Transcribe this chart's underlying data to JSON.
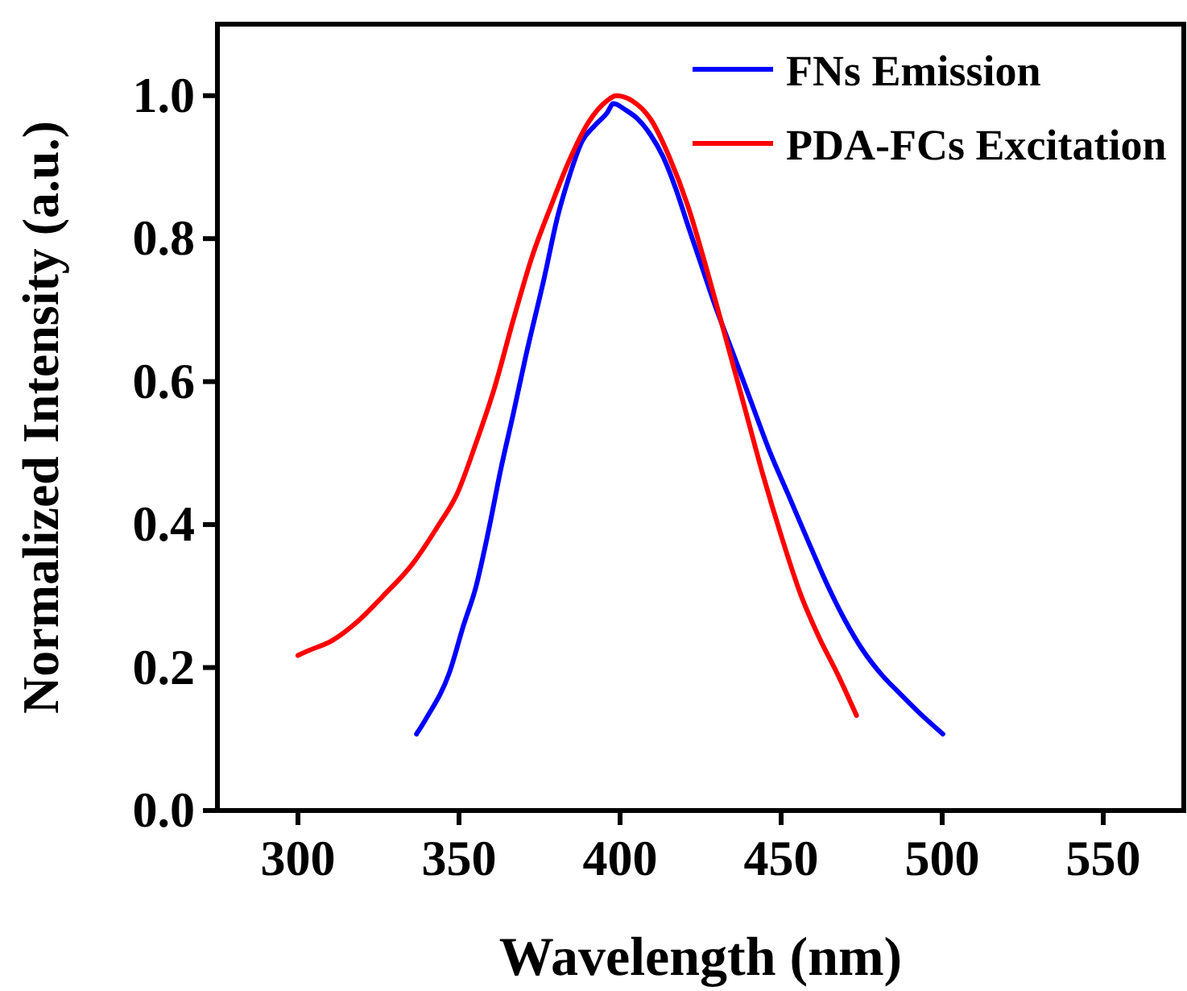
{
  "chart_data": {
    "type": "line",
    "xlabel": "Wavelength (nm)",
    "ylabel": "Normalized Intensity (a.u.)",
    "xlim": [
      275,
      575
    ],
    "xticks": [
      300,
      350,
      400,
      450,
      500,
      550
    ],
    "ylim": [
      0,
      1.1
    ],
    "yticks": [
      {
        "value": 0,
        "label": "0.0"
      },
      0.2,
      0.4,
      0.6,
      0.8,
      {
        "value": 1,
        "label": "1.0"
      }
    ],
    "grid": false,
    "legend": "top right",
    "marker": "none",
    "line_style": "solid",
    "series": [
      {
        "name": "FNs Emission",
        "color": "#0000ff",
        "x": [
          336.8,
          339.7,
          347.1,
          351.4,
          355.2,
          359.1,
          363,
          366.9,
          370.7,
          376.6,
          380.4,
          384.3,
          388.2,
          392.1,
          396,
          397.9,
          401.7,
          405.6,
          409.5,
          413.4,
          417.2,
          421.1,
          425,
          428.9,
          434.7,
          440.5,
          446.3,
          452.1,
          457.9,
          463.8,
          469.6,
          475.4,
          481.2,
          487,
          492.8,
          500.2
        ],
        "values": [
          0.107,
          0.128,
          0.194,
          0.259,
          0.312,
          0.39,
          0.478,
          0.556,
          0.635,
          0.748,
          0.827,
          0.888,
          0.936,
          0.958,
          0.976,
          0.989,
          0.98,
          0.967,
          0.945,
          0.914,
          0.871,
          0.818,
          0.766,
          0.714,
          0.644,
          0.574,
          0.504,
          0.443,
          0.382,
          0.321,
          0.268,
          0.224,
          0.19,
          0.163,
          0.137,
          0.107
        ]
      },
      {
        "name": "PDA-FCs Excitation",
        "color": "#ff0000",
        "x": [
          300,
          302.9,
          310.7,
          318.4,
          326.2,
          335.9,
          343.6,
          349.4,
          355.2,
          361,
          366.9,
          372.7,
          378.5,
          384.3,
          390.1,
          396,
          398.8,
          403.7,
          409.5,
          415.3,
          421.1,
          426.9,
          432.8,
          438.6,
          444.4,
          450.2,
          456,
          461.8,
          467.6,
          473.4
        ],
        "values": [
          0.217,
          0.223,
          0.238,
          0.264,
          0.299,
          0.347,
          0.399,
          0.443,
          0.513,
          0.591,
          0.687,
          0.775,
          0.845,
          0.91,
          0.962,
          0.993,
          1.0,
          0.993,
          0.967,
          0.914,
          0.845,
          0.757,
          0.661,
          0.565,
          0.469,
          0.382,
          0.303,
          0.242,
          0.19,
          0.133
        ]
      }
    ]
  }
}
